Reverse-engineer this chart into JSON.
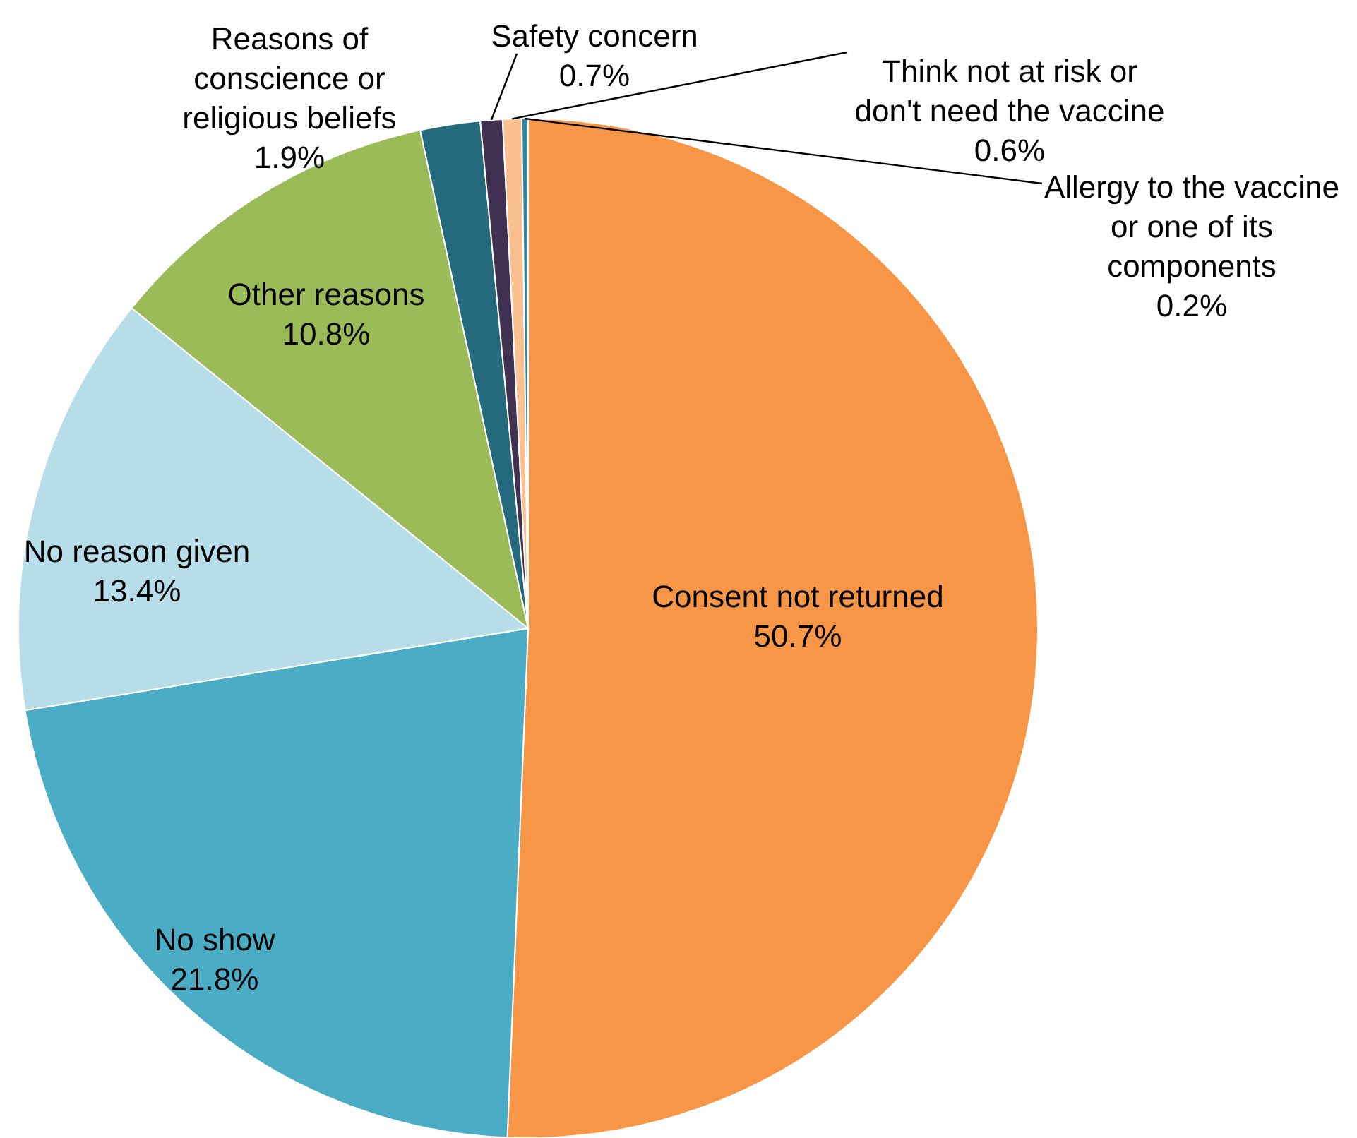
{
  "chart_data": {
    "type": "pie",
    "categories": [
      "Consent not returned",
      "No show",
      "No reason given",
      "Other reasons",
      "Reasons of conscience or religious beliefs",
      "Safety concern",
      "Think not at risk or don't need the vaccine",
      "Allergy to the vaccine or one of its components"
    ],
    "values": [
      50.7,
      21.8,
      13.4,
      10.8,
      1.9,
      0.7,
      0.6,
      0.2
    ],
    "colors": [
      "#f79646",
      "#4bacc6",
      "#b7dde8",
      "#9bbb59",
      "#256a7c",
      "#403152",
      "#fac090",
      "#31859c"
    ],
    "value_labels": [
      "50.7%",
      "21.8%",
      "13.4%",
      "10.8%",
      "1.9%",
      "0.7%",
      "0.6%",
      "0.2%"
    ]
  }
}
